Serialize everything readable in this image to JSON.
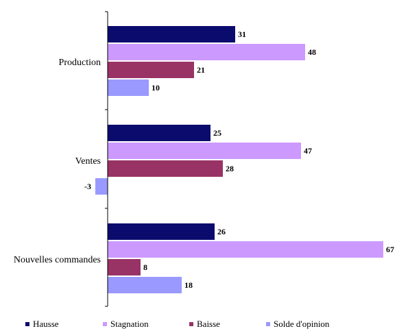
{
  "chart_data": {
    "type": "bar",
    "orientation": "horizontal",
    "categories": [
      "Production",
      "Ventes",
      "Nouvelles commandes"
    ],
    "series": [
      {
        "name": "Hausse",
        "values": [
          31,
          25,
          26
        ],
        "color": "#0b0b6e"
      },
      {
        "name": "Stagnation",
        "values": [
          48,
          47,
          67
        ],
        "color": "#cc99ff"
      },
      {
        "name": "Baisse",
        "values": [
          21,
          28,
          8
        ],
        "color": "#993366"
      },
      {
        "name": "Solde d'opinion",
        "values": [
          10,
          -3,
          18
        ],
        "color": "#9999ff"
      }
    ],
    "xlim": [
      -3,
      67
    ],
    "grid": false,
    "legend_position": "bottom",
    "title": "",
    "xlabel": "",
    "ylabel": ""
  }
}
